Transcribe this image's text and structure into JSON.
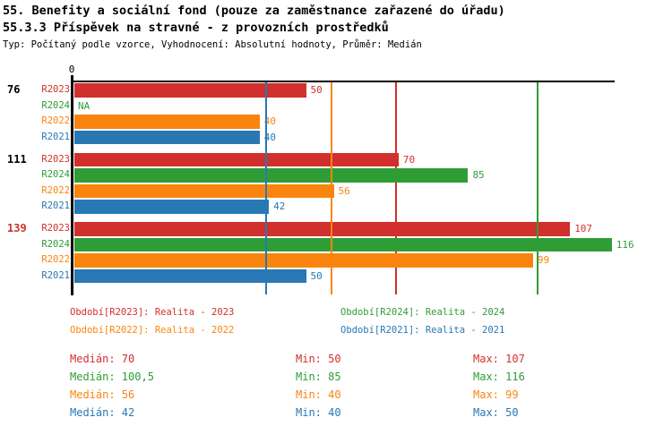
{
  "page": {
    "title_line1": "55. Benefity a sociální fond (pouze za zaměstnance zařazené do úřadu)",
    "title_line2": "55.3.3 Příspěvek na stravné - z provozních prostředků",
    "subtitle": "Typ: Počítaný podle vzorce, Vyhodnocení: Absolutní hodnoty, Průměr: Medián"
  },
  "chart_data": {
    "type": "bar",
    "orientation": "horizontal",
    "value_axis": {
      "zero_label": "0",
      "min": 0,
      "approx_max": 117,
      "grid": false
    },
    "legend_position": "bottom",
    "series": [
      {
        "id": "R2023",
        "label": "R2023",
        "color": "#d1302c",
        "legend": "Období[R2023]: Realita - 2023",
        "median": 70,
        "stats": {
          "median": "Medián: 70",
          "min": "Min: 50",
          "max": "Max: 107"
        }
      },
      {
        "id": "R2024",
        "label": "R2024",
        "color": "#2f9d36",
        "legend": "Období[R2024]: Realita - 2024",
        "median": 100.5,
        "stats": {
          "median": "Medián: 100,5",
          "min": "Min: 85",
          "max": "Max: 116"
        }
      },
      {
        "id": "R2022",
        "label": "R2022",
        "color": "#f9850f",
        "legend": "Období[R2022]: Realita - 2022",
        "median": 56,
        "stats": {
          "median": "Medián: 56",
          "min": "Min: 40",
          "max": "Max: 99"
        }
      },
      {
        "id": "R2021",
        "label": "R2021",
        "color": "#2878b4",
        "legend": "Období[R2021]: Realita - 2021",
        "median": 42,
        "stats": {
          "median": "Medián: 42",
          "min": "Min: 40",
          "max": "Max: 50"
        }
      }
    ],
    "groups": [
      {
        "label": "76",
        "label_color": "#000000",
        "bars": [
          {
            "series": "R2023",
            "value": 50,
            "display": "50"
          },
          {
            "series": "R2024",
            "value": null,
            "display": "NA"
          },
          {
            "series": "R2022",
            "value": 40,
            "display": "40"
          },
          {
            "series": "R2021",
            "value": 40,
            "display": "40"
          }
        ]
      },
      {
        "label": "111",
        "label_color": "#000000",
        "bars": [
          {
            "series": "R2023",
            "value": 70,
            "display": "70"
          },
          {
            "series": "R2024",
            "value": 85,
            "display": "85"
          },
          {
            "series": "R2022",
            "value": 56,
            "display": "56"
          },
          {
            "series": "R2021",
            "value": 42,
            "display": "42"
          }
        ]
      },
      {
        "label": "139",
        "label_color": "#d1302c",
        "bars": [
          {
            "series": "R2023",
            "value": 107,
            "display": "107"
          },
          {
            "series": "R2024",
            "value": 116,
            "display": "116"
          },
          {
            "series": "R2022",
            "value": 99,
            "display": "99"
          },
          {
            "series": "R2021",
            "value": 50,
            "display": "50"
          }
        ]
      }
    ]
  }
}
